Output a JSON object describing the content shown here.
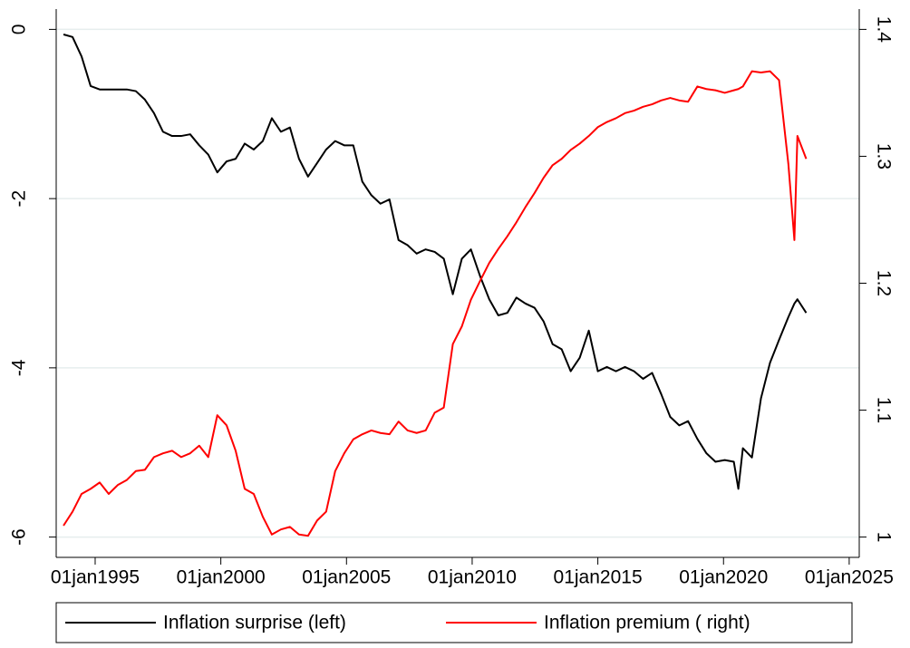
{
  "chart_data": {
    "type": "line",
    "x": [
      1993.74,
      1994.1,
      1994.46,
      1994.82,
      1995.18,
      1995.54,
      1995.9,
      1996.26,
      1996.62,
      1996.98,
      1997.34,
      1997.7,
      1998.06,
      1998.42,
      1998.78,
      1999.14,
      1999.5,
      1999.86,
      2000.23,
      2000.59,
      2000.95,
      2001.31,
      2001.67,
      2002.03,
      2002.39,
      2002.75,
      2003.11,
      2003.47,
      2003.83,
      2004.19,
      2004.55,
      2004.91,
      2005.27,
      2005.63,
      2005.99,
      2006.35,
      2006.71,
      2007.07,
      2007.43,
      2007.79,
      2008.15,
      2008.51,
      2008.87,
      2009.23,
      2009.59,
      2009.95,
      2010.32,
      2010.68,
      2011.04,
      2011.4,
      2011.76,
      2012.12,
      2012.48,
      2012.84,
      2013.2,
      2013.56,
      2013.92,
      2014.28,
      2014.64,
      2015.0,
      2015.36,
      2015.72,
      2016.08,
      2016.44,
      2016.8,
      2017.16,
      2017.52,
      2017.88,
      2018.24,
      2018.59,
      2018.96,
      2019.32,
      2019.68,
      2020.05,
      2020.41,
      2020.59,
      2020.77,
      2021.13,
      2021.49,
      2021.85,
      2022.21,
      2022.58,
      2022.82,
      2022.94,
      2023.29
    ],
    "series": [
      {
        "name": "Inflation surprise (left)",
        "color": "#000000",
        "axis": "y",
        "values": [
          -0.06,
          -0.09,
          -0.32,
          -0.67,
          -0.71,
          -0.71,
          -0.71,
          -0.71,
          -0.73,
          -0.83,
          -0.99,
          -1.21,
          -1.26,
          -1.26,
          -1.24,
          -1.37,
          -1.48,
          -1.69,
          -1.56,
          -1.53,
          -1.35,
          -1.42,
          -1.32,
          -1.05,
          -1.21,
          -1.16,
          -1.53,
          -1.74,
          -1.58,
          -1.42,
          -1.32,
          -1.37,
          -1.37,
          -1.8,
          -1.96,
          -2.06,
          -2.01,
          -2.49,
          -2.55,
          -2.65,
          -2.6,
          -2.63,
          -2.71,
          -3.13,
          -2.71,
          -2.6,
          -2.92,
          -3.19,
          -3.38,
          -3.35,
          -3.17,
          -3.24,
          -3.29,
          -3.45,
          -3.72,
          -3.78,
          -4.04,
          -3.88,
          -3.56,
          -4.04,
          -3.99,
          -4.04,
          -3.99,
          -4.04,
          -4.13,
          -4.06,
          -4.31,
          -4.58,
          -4.68,
          -4.63,
          -4.84,
          -5.01,
          -5.11,
          -5.09,
          -5.11,
          -5.43,
          -4.95,
          -5.06,
          -4.36,
          -3.94,
          -3.67,
          -3.4,
          -3.24,
          -3.19,
          -3.35
        ]
      },
      {
        "name": "Inflation premium ( right)",
        "color": "#ff0000",
        "axis": "y2",
        "values": [
          1.009,
          1.02,
          1.034,
          1.038,
          1.043,
          1.034,
          1.041,
          1.045,
          1.052,
          1.053,
          1.063,
          1.066,
          1.068,
          1.063,
          1.066,
          1.072,
          1.063,
          1.096,
          1.088,
          1.068,
          1.038,
          1.034,
          1.016,
          1.002,
          1.006,
          1.008,
          1.002,
          1.001,
          1.013,
          1.02,
          1.052,
          1.066,
          1.077,
          1.081,
          1.084,
          1.082,
          1.081,
          1.091,
          1.084,
          1.082,
          1.084,
          1.098,
          1.102,
          1.152,
          1.166,
          1.187,
          1.202,
          1.216,
          1.227,
          1.237,
          1.248,
          1.26,
          1.271,
          1.283,
          1.293,
          1.298,
          1.305,
          1.31,
          1.316,
          1.323,
          1.327,
          1.33,
          1.334,
          1.336,
          1.339,
          1.341,
          1.344,
          1.346,
          1.344,
          1.343,
          1.355,
          1.353,
          1.352,
          1.35,
          1.352,
          1.353,
          1.355,
          1.367,
          1.366,
          1.367,
          1.36,
          1.294,
          1.234,
          1.316,
          1.298
        ]
      }
    ],
    "xlim": [
      1993.45,
      2025.4
    ],
    "xticks": [
      {
        "value": 1995,
        "label": "01jan1995"
      },
      {
        "value": 2000,
        "label": "01jan2000"
      },
      {
        "value": 2005,
        "label": "01jan2005"
      },
      {
        "value": 2010,
        "label": "01jan2010"
      },
      {
        "value": 2015,
        "label": "01jan2015"
      },
      {
        "value": 2020,
        "label": "01jan2020"
      },
      {
        "value": 2025,
        "label": "01jan2025"
      }
    ],
    "ylim": [
      -6.24,
      0.24
    ],
    "yticks": [
      0,
      -2,
      -4,
      -6
    ],
    "y2lim": [
      0.984,
      1.416
    ],
    "y2ticks": [
      1.4,
      1.3,
      1.2,
      1.1,
      1
    ],
    "grid": true,
    "legend": "bottom"
  }
}
